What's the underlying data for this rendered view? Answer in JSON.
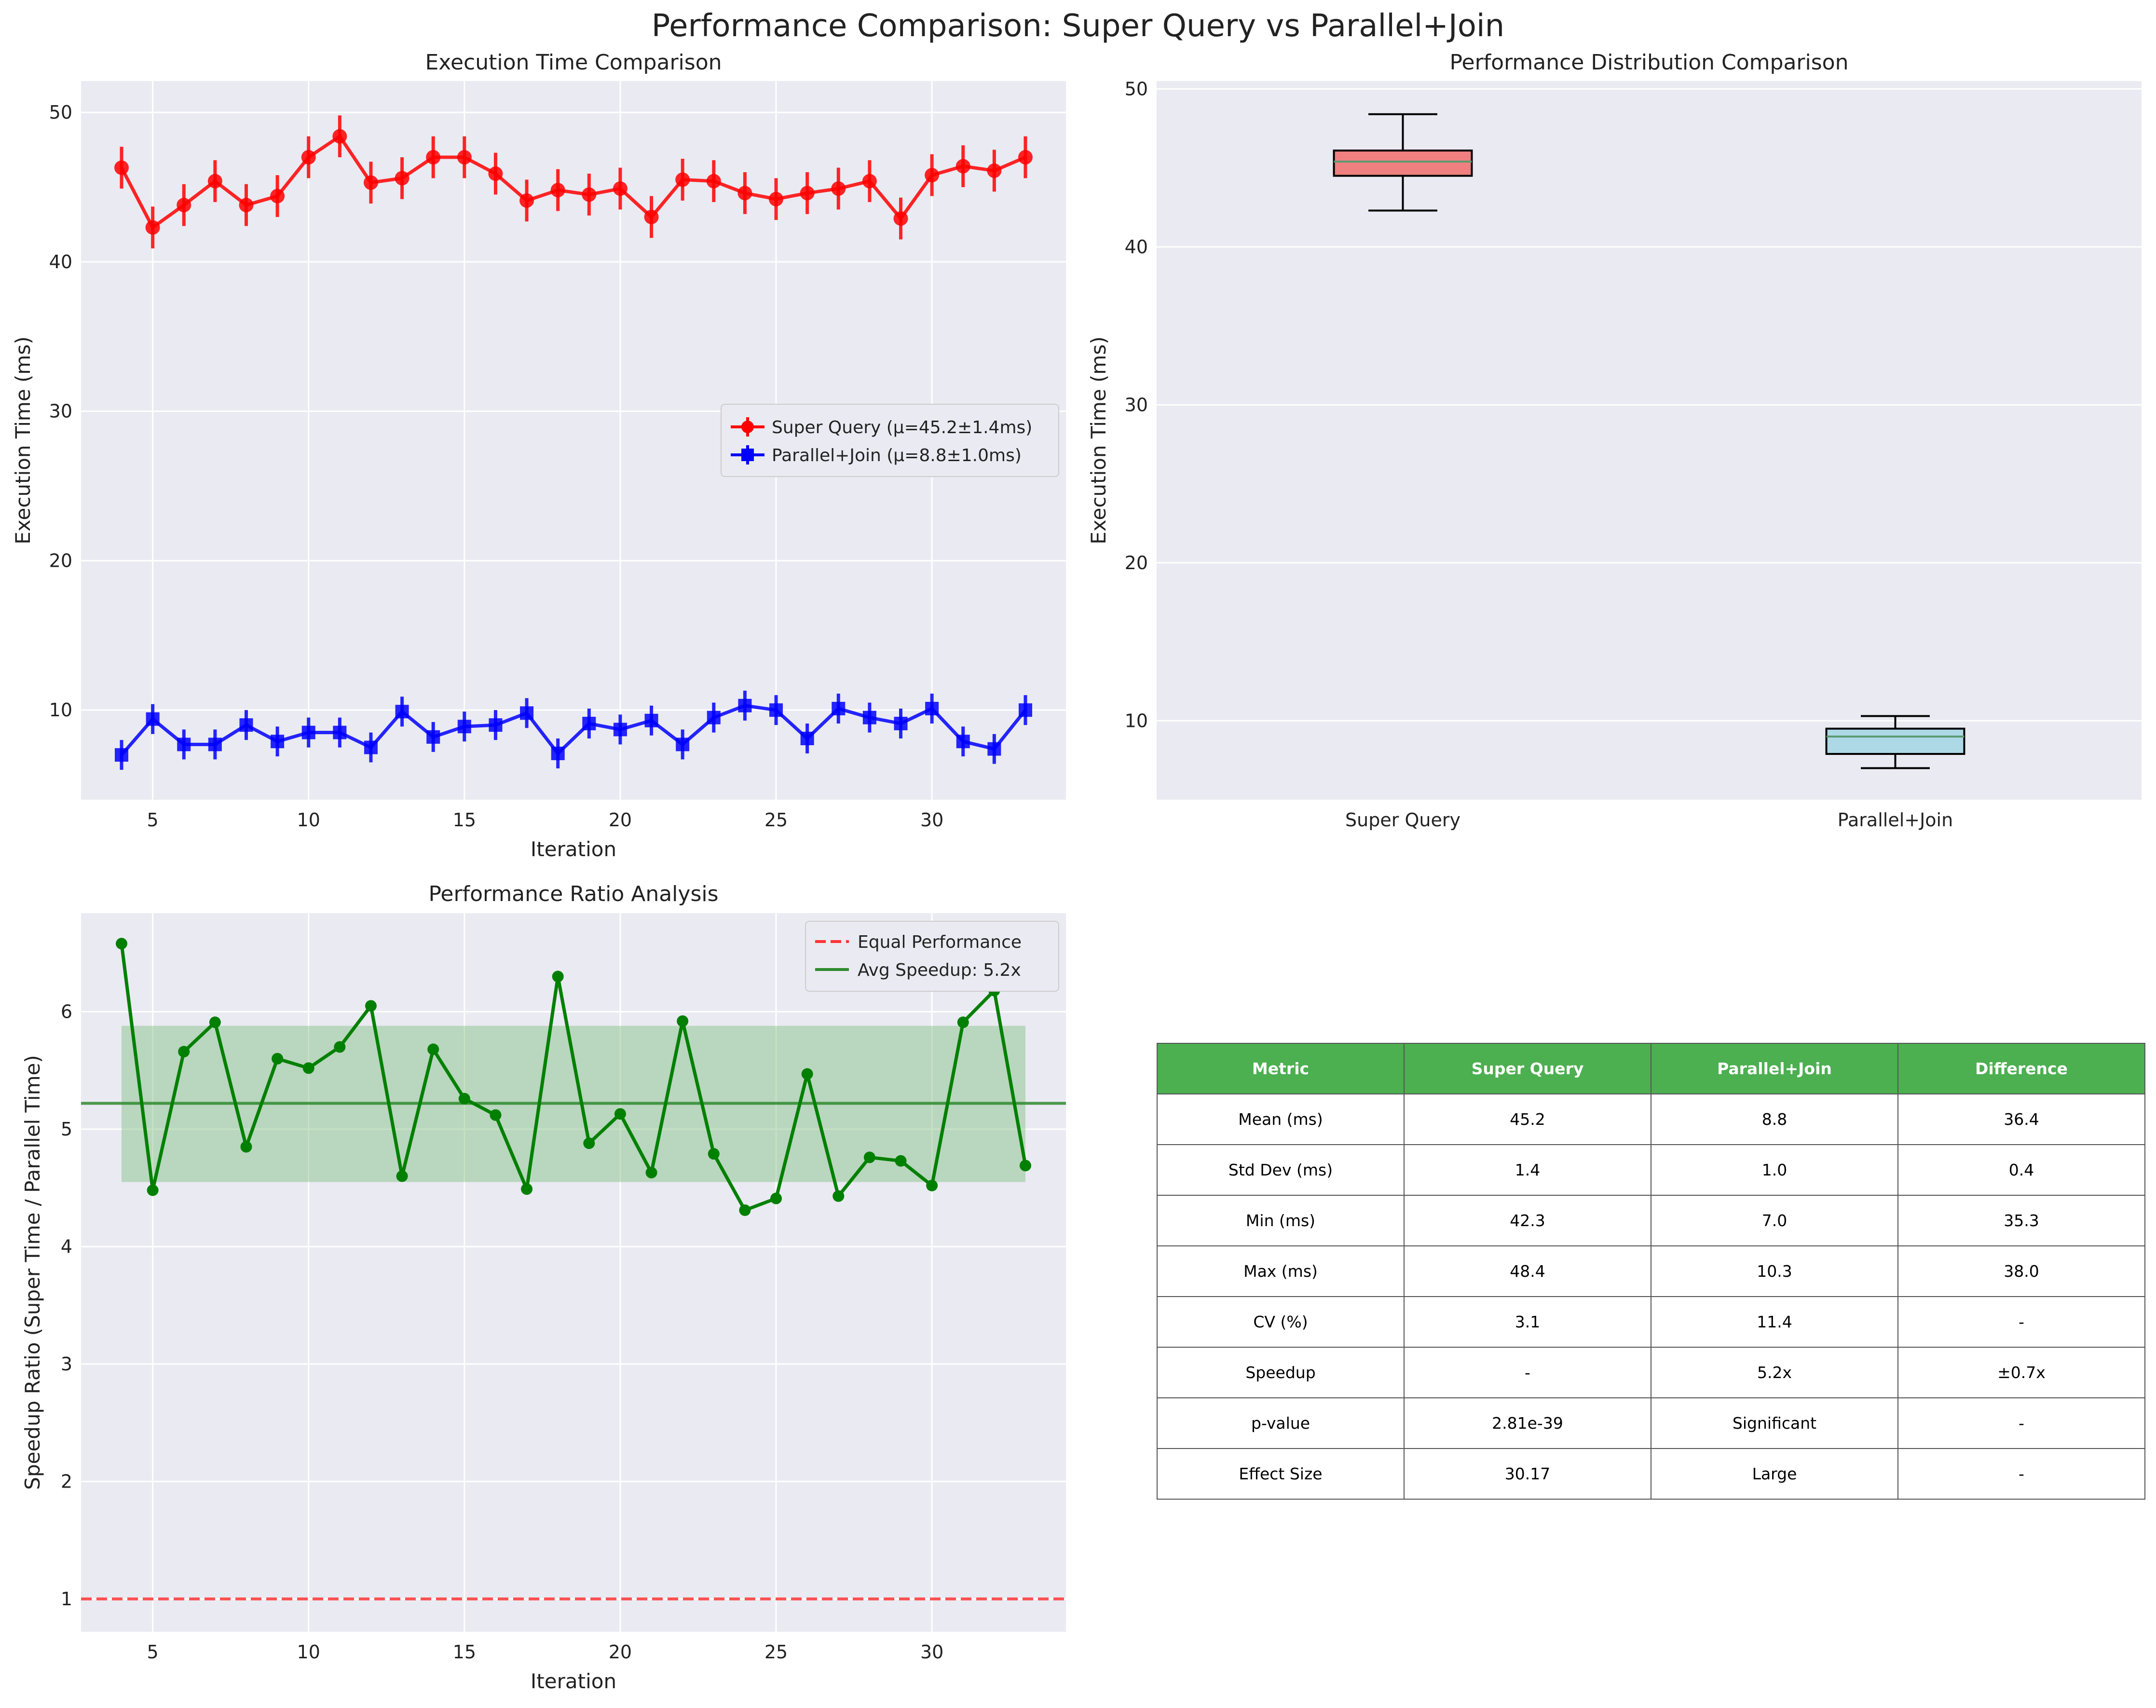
{
  "figure_title": "Performance Comparison: Super Query vs Parallel+Join",
  "colors": {
    "panel_bg": "#eaeaf2",
    "grid": "#ffffff",
    "super": "#ff0000",
    "parallel": "#0000ff",
    "ratio": "#008000",
    "equal_line": "#ff3333",
    "super_box": "#f08080",
    "parallel_box": "#add8e6",
    "median": "#5b9b6f",
    "table_header": "#4caf50"
  },
  "chart_data": [
    {
      "type": "line",
      "title": "Execution Time Comparison",
      "xlabel": "Iteration",
      "ylabel": "Execution Time (ms)",
      "xlim": [
        2.7,
        34.3
      ],
      "ylim": [
        4.0,
        52.1
      ],
      "xticks": [
        5,
        10,
        15,
        20,
        25,
        30
      ],
      "yticks": [
        10,
        20,
        30,
        40,
        50
      ],
      "grid": true,
      "legend_position": "center-right",
      "x": [
        4,
        5,
        6,
        7,
        8,
        9,
        10,
        11,
        12,
        13,
        14,
        15,
        16,
        17,
        18,
        19,
        20,
        21,
        22,
        23,
        24,
        25,
        26,
        27,
        28,
        29,
        30,
        31,
        32,
        33
      ],
      "series": [
        {
          "name": "Super Query (μ=45.2±1.4ms)",
          "marker": "circle",
          "error": 1.4,
          "values": [
            46.3,
            42.3,
            43.8,
            45.4,
            43.8,
            44.4,
            47.0,
            48.4,
            45.3,
            45.6,
            47.0,
            47.0,
            45.9,
            44.1,
            44.8,
            44.5,
            44.9,
            43.0,
            45.5,
            45.4,
            44.6,
            44.2,
            44.6,
            44.9,
            45.4,
            42.9,
            45.8,
            46.4,
            46.1,
            47.0
          ]
        },
        {
          "name": "Parallel+Join (μ=8.8±1.0ms)",
          "marker": "square",
          "error": 1.0,
          "values": [
            7.0,
            9.4,
            7.7,
            7.7,
            9.0,
            7.9,
            8.5,
            8.5,
            7.5,
            9.9,
            8.2,
            8.9,
            9.0,
            9.8,
            7.1,
            9.1,
            8.7,
            9.3,
            7.7,
            9.5,
            10.3,
            10.0,
            8.1,
            10.1,
            9.5,
            9.1,
            10.1,
            7.9,
            7.4,
            10.0
          ]
        }
      ]
    },
    {
      "type": "box",
      "title": "Performance Distribution Comparison",
      "xlabel": "",
      "ylabel": "Execution Time (ms)",
      "ylim": [
        5.0,
        50.5
      ],
      "yticks": [
        10,
        20,
        30,
        40,
        50
      ],
      "grid": true,
      "categories": [
        "Super Query",
        "Parallel+Join"
      ],
      "boxes": [
        {
          "min": 42.3,
          "q1": 44.5,
          "median": 45.4,
          "q3": 46.1,
          "max": 48.4
        },
        {
          "min": 7.0,
          "q1": 7.9,
          "median": 9.0,
          "q3": 9.5,
          "max": 10.3
        }
      ]
    },
    {
      "type": "line",
      "title": "Performance Ratio Analysis",
      "xlabel": "Iteration",
      "ylabel": "Speedup Ratio (Super Time / Parallel Time)",
      "xlim": [
        2.7,
        34.3
      ],
      "ylim": [
        0.72,
        6.84
      ],
      "xticks": [
        5,
        10,
        15,
        20,
        25,
        30
      ],
      "yticks": [
        1,
        2,
        3,
        4,
        5,
        6
      ],
      "grid": true,
      "legend_position": "top-right",
      "x": [
        4,
        5,
        6,
        7,
        8,
        9,
        10,
        11,
        12,
        13,
        14,
        15,
        16,
        17,
        18,
        19,
        20,
        21,
        22,
        23,
        24,
        25,
        26,
        27,
        28,
        29,
        30,
        31,
        32,
        33
      ],
      "series": [
        {
          "name": "",
          "values": [
            6.58,
            4.48,
            5.66,
            5.91,
            4.85,
            5.6,
            5.52,
            5.7,
            6.05,
            4.6,
            5.68,
            5.26,
            5.12,
            4.49,
            6.3,
            4.88,
            5.13,
            4.63,
            5.92,
            4.79,
            4.31,
            4.41,
            5.47,
            4.43,
            4.76,
            4.73,
            4.52,
            5.91,
            6.18,
            4.69
          ]
        }
      ],
      "equal_line": {
        "label": "Equal Performance",
        "value": 1.0
      },
      "avg_line": {
        "label": "Avg Speedup: 5.2x",
        "value": 5.22
      },
      "band": {
        "low": 4.55,
        "high": 5.88
      }
    }
  ],
  "table": {
    "headers": [
      "Metric",
      "Super Query",
      "Parallel+Join",
      "Difference"
    ],
    "rows": [
      [
        "Mean (ms)",
        "45.2",
        "8.8",
        "36.4"
      ],
      [
        "Std Dev (ms)",
        "1.4",
        "1.0",
        "0.4"
      ],
      [
        "Min (ms)",
        "42.3",
        "7.0",
        "35.3"
      ],
      [
        "Max (ms)",
        "48.4",
        "10.3",
        "38.0"
      ],
      [
        "CV (%)",
        "3.1",
        "11.4",
        "-"
      ],
      [
        "Speedup",
        "-",
        "5.2x",
        "±0.7x"
      ],
      [
        "p-value",
        "2.81e-39",
        "Significant",
        "-"
      ],
      [
        "Effect Size",
        "30.17",
        "Large",
        "-"
      ]
    ]
  }
}
